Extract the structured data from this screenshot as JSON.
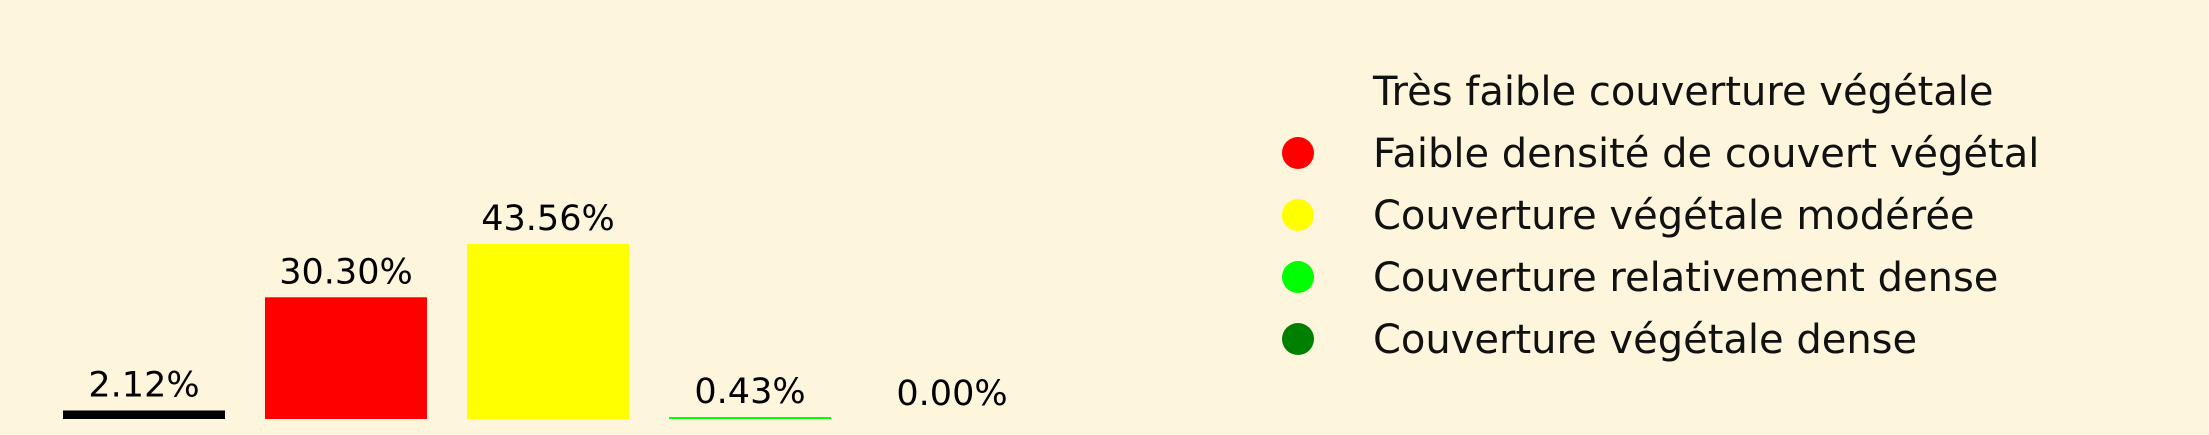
{
  "chart_data": {
    "type": "bar",
    "title": "",
    "xlabel": "",
    "ylabel": "",
    "ylim": [
      0,
      100
    ],
    "grid": false,
    "legend_placement": "right",
    "series": [
      {
        "label": "2.12%",
        "value": 2.12,
        "color": "#000000"
      },
      {
        "label": "30.30%",
        "value": 30.3,
        "color": "#ff0000"
      },
      {
        "label": "43.56%",
        "value": 43.56,
        "color": "#ffff00"
      },
      {
        "label": "0.43%",
        "value": 0.43,
        "color": "#00ff00"
      },
      {
        "label": "0.00%",
        "value": 0.0,
        "color": "#008000"
      }
    ],
    "legend": [
      {
        "text": "Très faible couverture végétale",
        "color": "#000000"
      },
      {
        "text": "Faible densité de couvert végétal",
        "color": "#ff0000"
      },
      {
        "text": "Couverture végétale modérée",
        "color": "#ffff00"
      },
      {
        "text": "Couverture relativement dense",
        "color": "#00ff00"
      },
      {
        "text": "Couverture végétale dense",
        "color": "#008000"
      }
    ]
  }
}
